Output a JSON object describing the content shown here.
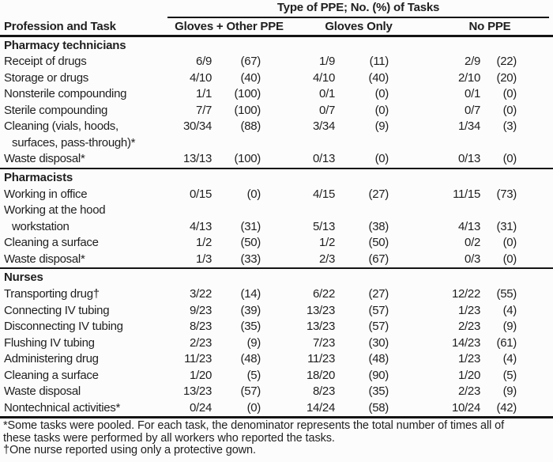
{
  "table": {
    "spanner": "Type of PPE; No. (%) of Tasks",
    "col_task_header": "Profession and Task",
    "columns": [
      "Gloves + Other PPE",
      "Gloves Only",
      "No PPE"
    ],
    "sections": [
      {
        "name": "Pharmacy technicians",
        "rows": [
          {
            "task": "Receipt of drugs",
            "c": [
              "6/9",
              "(67)",
              "1/9",
              "(11)",
              "2/9",
              "(22)"
            ]
          },
          {
            "task": "Storage or drugs",
            "c": [
              "4/10",
              "(40)",
              "4/10",
              "(40)",
              "2/10",
              "(20)"
            ]
          },
          {
            "task": "Nonsterile compounding",
            "c": [
              "1/1",
              "(100)",
              "0/1",
              "(0)",
              "0/1",
              "(0)"
            ]
          },
          {
            "task": "Sterile compounding",
            "c": [
              "7/7",
              "(100)",
              "0/7",
              "(0)",
              "0/7",
              "(0)"
            ]
          },
          {
            "task": "Cleaning (vials, hoods,",
            "task2": "surfaces, pass-through)*",
            "numbers_on": "first",
            "c": [
              "30/34",
              "(88)",
              "3/34",
              "(9)",
              "1/34",
              "(3)"
            ]
          },
          {
            "task": "Waste disposal*",
            "c": [
              "13/13",
              "(100)",
              "0/13",
              "(0)",
              "0/13",
              "(0)"
            ]
          }
        ]
      },
      {
        "name": "Pharmacists",
        "rows": [
          {
            "task": "Working in office",
            "c": [
              "0/15",
              "(0)",
              "4/15",
              "(27)",
              "11/15",
              "(73)"
            ]
          },
          {
            "task": "Working at the hood",
            "task2": "workstation",
            "numbers_on": "second",
            "c": [
              "4/13",
              "(31)",
              "5/13",
              "(38)",
              "4/13",
              "(31)"
            ]
          },
          {
            "task": "Cleaning a surface",
            "c": [
              "1/2",
              "(50)",
              "1/2",
              "(50)",
              "0/2",
              "(0)"
            ]
          },
          {
            "task": "Waste disposal*",
            "c": [
              "1/3",
              "(33)",
              "2/3",
              "(67)",
              "0/3",
              "(0)"
            ]
          }
        ]
      },
      {
        "name": "Nurses",
        "rows": [
          {
            "task": "Transporting drug†",
            "c": [
              "3/22",
              "(14)",
              "6/22",
              "(27)",
              "12/22",
              "(55)"
            ]
          },
          {
            "task": "Connecting IV tubing",
            "c": [
              "9/23",
              "(39)",
              "13/23",
              "(57)",
              "1/23",
              "(4)"
            ]
          },
          {
            "task": "Disconnecting IV tubing",
            "c": [
              "8/23",
              "(35)",
              "13/23",
              "(57)",
              "2/23",
              "(9)"
            ]
          },
          {
            "task": "Flushing IV tubing",
            "c": [
              "2/23",
              "(9)",
              "7/23",
              "(30)",
              "14/23",
              "(61)"
            ]
          },
          {
            "task": "Administering drug",
            "c": [
              "11/23",
              "(48)",
              "11/23",
              "(48)",
              "1/23",
              "(4)"
            ]
          },
          {
            "task": "Cleaning a surface",
            "c": [
              "1/20",
              "(5)",
              "18/20",
              "(90)",
              "1/20",
              "(5)"
            ]
          },
          {
            "task": "Waste disposal",
            "c": [
              "13/23",
              "(57)",
              "8/23",
              "(35)",
              "2/23",
              "(9)"
            ]
          },
          {
            "task": "Nontechnical activities*",
            "c": [
              "0/24",
              "(0)",
              "14/24",
              "(58)",
              "10/24",
              "(42)"
            ]
          }
        ]
      }
    ],
    "footnotes": [
      "*Some tasks were pooled. For each task, the denominator represents the total number of times all of these tasks were performed by all workers who reported the tasks.",
      "†One nurse reported using only a protective gown."
    ]
  }
}
